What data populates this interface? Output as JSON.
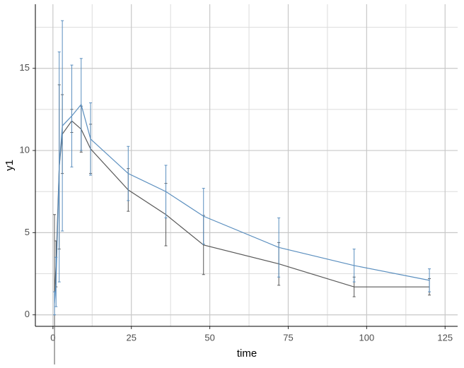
{
  "chart_data": {
    "type": "line-errorbar",
    "x_label": "time",
    "y_label": "y1",
    "xlim": [
      -5.6,
      129
    ],
    "ylim": [
      -0.7,
      18.9
    ],
    "xticks": [
      0,
      25,
      50,
      75,
      100,
      125
    ],
    "yticks": [
      0,
      5,
      10,
      15
    ],
    "xminor": [
      12.5,
      37.5,
      62.5,
      87.5,
      112.5
    ],
    "yminor": [
      2.5,
      7.5,
      12.5,
      17.5
    ],
    "grid": true,
    "x": [
      0.5,
      1,
      2,
      3,
      6,
      9,
      12,
      24,
      36,
      48,
      72,
      96,
      120
    ],
    "series": [
      {
        "color": "#595959",
        "values": [
          1.2,
          3.1,
          9.0,
          11.0,
          11.8,
          11.3,
          10.1,
          7.6,
          6.1,
          4.25,
          3.1,
          1.7,
          1.7
        ],
        "errors": [
          4.9,
          1.4,
          5.0,
          2.4,
          0.7,
          1.4,
          1.5,
          1.3,
          1.9,
          1.8,
          1.3,
          0.6,
          0.5
        ]
      },
      {
        "color": "#5b8fbf",
        "values": [
          0.7,
          2.0,
          9.0,
          11.5,
          12.1,
          12.8,
          10.7,
          8.6,
          7.5,
          6.0,
          4.1,
          3.0,
          2.1
        ],
        "errors": [
          0.7,
          1.5,
          7.0,
          6.4,
          3.1,
          2.8,
          2.2,
          1.65,
          1.6,
          1.7,
          1.8,
          1.0,
          0.7
        ]
      }
    ]
  }
}
